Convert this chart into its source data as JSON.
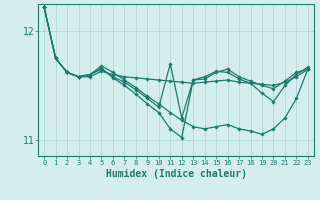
{
  "xlabel": "Humidex (Indice chaleur)",
  "xlim": [
    -0.5,
    23.5
  ],
  "ylim": [
    10.85,
    12.25
  ],
  "yticks": [
    11,
    12
  ],
  "xticks": [
    0,
    1,
    2,
    3,
    4,
    5,
    6,
    7,
    8,
    9,
    10,
    11,
    12,
    13,
    14,
    15,
    16,
    17,
    18,
    19,
    20,
    21,
    22,
    23
  ],
  "bg_color": "#d4eeee",
  "line_color": "#1a7a6e",
  "grid_color": "#aad4d4",
  "series": [
    [
      12.22,
      11.75,
      11.62,
      11.58,
      11.58,
      11.63,
      11.6,
      11.58,
      11.57,
      11.56,
      11.55,
      11.54,
      11.53,
      11.52,
      11.53,
      11.54,
      11.55,
      11.53,
      11.52,
      11.51,
      11.5,
      11.53,
      11.58,
      11.65
    ],
    [
      12.22,
      11.75,
      11.62,
      11.58,
      11.6,
      11.65,
      11.58,
      11.53,
      11.46,
      11.38,
      11.3,
      11.7,
      11.2,
      11.55,
      11.56,
      11.62,
      11.65,
      11.58,
      11.54,
      11.5,
      11.47,
      11.54,
      11.62,
      11.65
    ],
    [
      12.22,
      11.75,
      11.62,
      11.58,
      11.6,
      11.66,
      11.57,
      11.5,
      11.42,
      11.33,
      11.25,
      11.1,
      11.02,
      11.55,
      11.58,
      11.63,
      11.62,
      11.56,
      11.52,
      11.43,
      11.35,
      11.5,
      11.6,
      11.67
    ],
    [
      12.22,
      11.75,
      11.62,
      11.58,
      11.6,
      11.68,
      11.62,
      11.55,
      11.48,
      11.4,
      11.33,
      11.25,
      11.18,
      11.12,
      11.1,
      11.12,
      11.14,
      11.1,
      11.08,
      11.05,
      11.1,
      11.2,
      11.38,
      11.65
    ]
  ]
}
